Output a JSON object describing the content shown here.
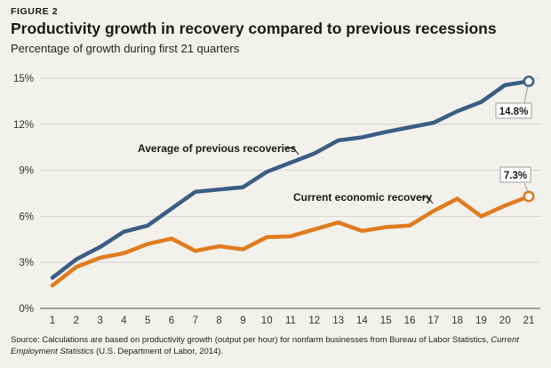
{
  "figure_label": "FIGURE 2",
  "title": "Productivity growth in recovery compared to previous recessions",
  "subtitle": "Percentage of growth during first 21 quarters",
  "source": {
    "prefix": "Source: Calculations are based on productivity growth (output per hour) for nonfarm businesses from Bureau of Labor Statistics, ",
    "italic": "Current Employment Statistics",
    "suffix": " (U.S. Department of Labor, 2014)."
  },
  "colors": {
    "previous": "#3b5d84",
    "current": "#e07b1e",
    "grid": "#cfcfcf",
    "axis": "#555555"
  },
  "chart_data": {
    "type": "line",
    "x": [
      1,
      2,
      3,
      4,
      5,
      6,
      7,
      8,
      9,
      10,
      11,
      12,
      13,
      14,
      15,
      16,
      17,
      18,
      19,
      20,
      21
    ],
    "ylim": [
      0,
      15
    ],
    "yticks": [
      0,
      3,
      6,
      9,
      12,
      15
    ],
    "ytick_labels": [
      "0%",
      "3%",
      "6%",
      "9%",
      "12%",
      "15%"
    ],
    "xtick_labels": [
      "1",
      "2",
      "3",
      "4",
      "5",
      "6",
      "7",
      "8",
      "9",
      "10",
      "11",
      "12",
      "13",
      "14",
      "15",
      "16",
      "17",
      "18",
      "19",
      "20",
      "21"
    ],
    "grid": true,
    "series": [
      {
        "key": "previous",
        "name": "Average of previous recoveries",
        "values": [
          2.0,
          3.2,
          4.0,
          5.0,
          5.4,
          6.5,
          7.6,
          7.75,
          7.9,
          8.9,
          9.5,
          10.1,
          10.95,
          11.15,
          11.5,
          11.8,
          12.1,
          12.85,
          13.45,
          14.55,
          14.8
        ],
        "end_label": "14.8%"
      },
      {
        "key": "current",
        "name": "Current economic recovery",
        "values": [
          1.5,
          2.7,
          3.3,
          3.6,
          4.2,
          4.55,
          3.75,
          4.05,
          3.85,
          4.65,
          4.7,
          5.15,
          5.6,
          5.05,
          5.3,
          5.4,
          6.35,
          7.15,
          6.0,
          6.7,
          7.3
        ],
        "end_label": "7.3%"
      }
    ]
  }
}
